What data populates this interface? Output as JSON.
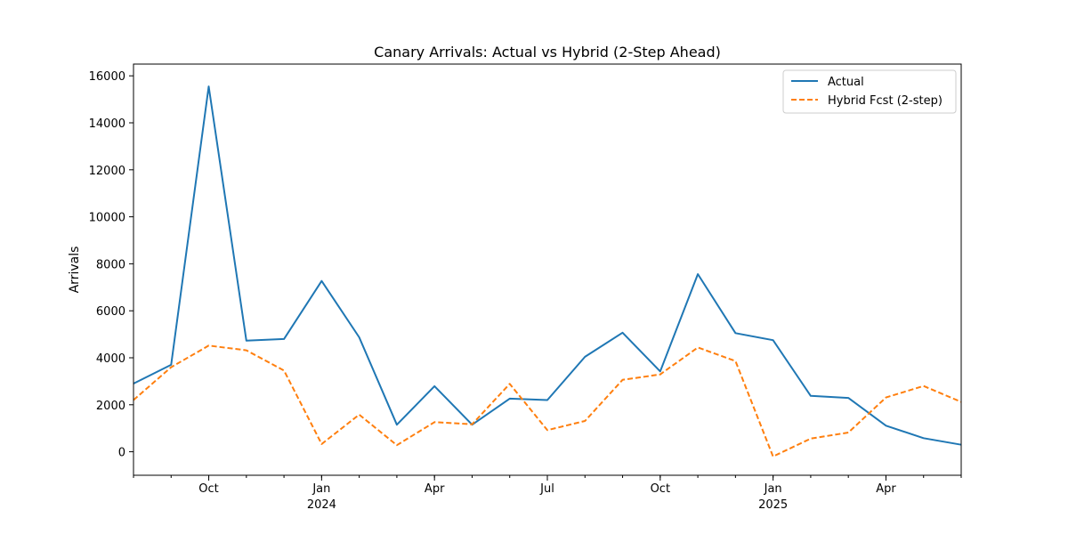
{
  "chart_data": {
    "type": "line",
    "title": "Canary Arrivals: Actual vs Hybrid (2-Step Ahead)",
    "xlabel": "",
    "ylabel": "Arrivals",
    "x": [
      "2023-08",
      "2023-09",
      "2023-10",
      "2023-11",
      "2023-12",
      "2024-01",
      "2024-02",
      "2024-03",
      "2024-04",
      "2024-05",
      "2024-06",
      "2024-07",
      "2024-08",
      "2024-09",
      "2024-10",
      "2024-11",
      "2024-12",
      "2025-01",
      "2025-02",
      "2025-03",
      "2025-04",
      "2025-05",
      "2025-06"
    ],
    "x_major_ticks": [
      {
        "x": "2023-10",
        "label": "Oct",
        "sublabel": ""
      },
      {
        "x": "2024-01",
        "label": "Jan",
        "sublabel": "2024"
      },
      {
        "x": "2024-04",
        "label": "Apr",
        "sublabel": ""
      },
      {
        "x": "2024-07",
        "label": "Jul",
        "sublabel": ""
      },
      {
        "x": "2024-10",
        "label": "Oct",
        "sublabel": ""
      },
      {
        "x": "2025-01",
        "label": "Jan",
        "sublabel": "2025"
      },
      {
        "x": "2025-04",
        "label": "Apr",
        "sublabel": ""
      }
    ],
    "ylim": [
      -1000,
      16500
    ],
    "yticks": [
      0,
      2000,
      4000,
      6000,
      8000,
      10000,
      12000,
      14000,
      16000
    ],
    "grid": false,
    "legend_position": "top-right",
    "series": [
      {
        "name": "Actual",
        "color": "#1f77b4",
        "style": "solid",
        "values": [
          2900,
          3700,
          15550,
          4730,
          4800,
          7270,
          4870,
          1150,
          2790,
          1150,
          2260,
          2200,
          4040,
          5070,
          3420,
          7560,
          5050,
          4750,
          2380,
          2290,
          1110,
          580,
          300
        ]
      },
      {
        "name": "Hybrid Fcst (2-step)",
        "color": "#ff7f0e",
        "style": "dashed",
        "values": [
          2200,
          3600,
          4520,
          4320,
          3460,
          330,
          1580,
          280,
          1260,
          1170,
          2890,
          920,
          1310,
          3060,
          3290,
          4440,
          3860,
          -200,
          560,
          820,
          2310,
          2800,
          2120
        ]
      }
    ]
  }
}
